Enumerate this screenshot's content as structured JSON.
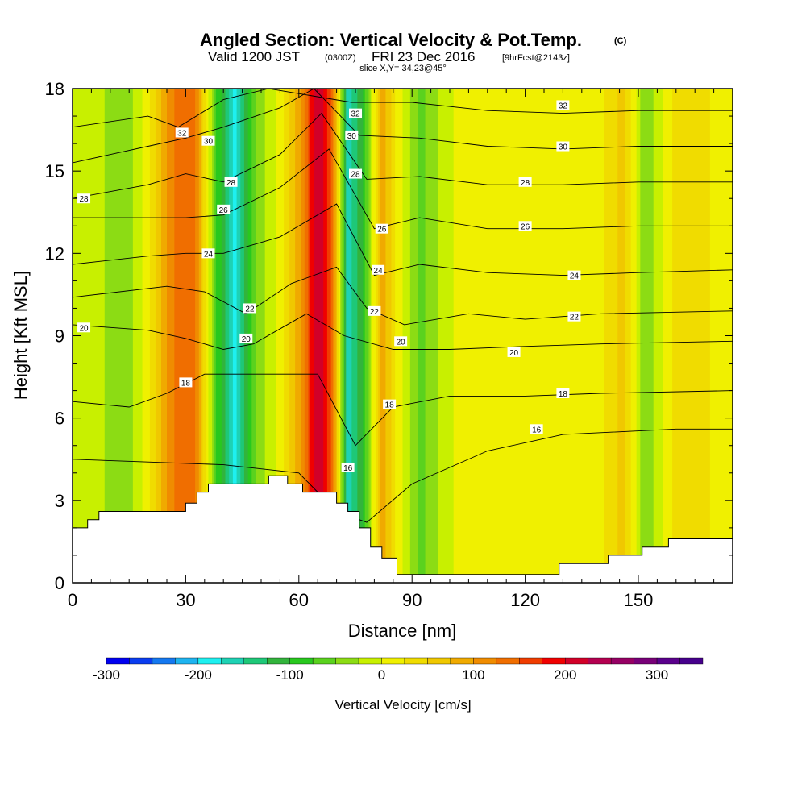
{
  "chart_data": {
    "type": "heatmap",
    "title": "Angled Section: Vertical Velocity & Pot.Temp.",
    "title_mark": "(C)",
    "subtitle": {
      "valid": "Valid 1200 JST",
      "utc": "(0300Z)",
      "date": "FRI 23 Dec 2016",
      "fcst": "[9hrFcst@2143z]"
    },
    "slice_text": "slice X,Y= 34,23@45°",
    "xlabel": "Distance [nm]",
    "ylabel": "Height [Kft MSL]",
    "xlim": [
      0,
      175
    ],
    "ylim": [
      0,
      18
    ],
    "xticks": [
      0,
      30,
      60,
      90,
      120,
      150
    ],
    "yticks": [
      0,
      3,
      6,
      9,
      12,
      15,
      18
    ],
    "colorbar": {
      "label": "Vertical Velocity [cm/s]",
      "ticks": [
        -300,
        -200,
        -100,
        0,
        100,
        200,
        300
      ],
      "range": [
        -300,
        350
      ],
      "step": 25,
      "colors": [
        "#0000f0",
        "#0a3cf0",
        "#1478f0",
        "#1eb4f0",
        "#1ef0f0",
        "#1ed2b4",
        "#1ec878",
        "#32b43c",
        "#28c81e",
        "#5ad21e",
        "#8cdc14",
        "#c8f000",
        "#f0f000",
        "#f0dc00",
        "#f0c800",
        "#f0aa00",
        "#f08c00",
        "#f06e00",
        "#f03c00",
        "#f00000",
        "#d20028",
        "#b40050",
        "#960064",
        "#780078",
        "#5a008c",
        "#46008c"
      ]
    },
    "velocity_columns": [
      {
        "x": 0,
        "v": 0
      },
      {
        "x": 6,
        "v": -15
      },
      {
        "x": 14,
        "v": -45
      },
      {
        "x": 20,
        "v": 15
      },
      {
        "x": 26,
        "v": 120
      },
      {
        "x": 32,
        "v": 150
      },
      {
        "x": 38,
        "v": -70
      },
      {
        "x": 43,
        "v": -190
      },
      {
        "x": 49,
        "v": -40
      },
      {
        "x": 55,
        "v": 10
      },
      {
        "x": 61,
        "v": 110
      },
      {
        "x": 65,
        "v": 230
      },
      {
        "x": 69,
        "v": 140
      },
      {
        "x": 73,
        "v": -170
      },
      {
        "x": 77,
        "v": -100
      },
      {
        "x": 82,
        "v": 90
      },
      {
        "x": 86,
        "v": 20
      },
      {
        "x": 92,
        "v": -60
      },
      {
        "x": 98,
        "v": -20
      },
      {
        "x": 104,
        "v": 20
      },
      {
        "x": 112,
        "v": 0
      },
      {
        "x": 120,
        "v": 10
      },
      {
        "x": 130,
        "v": 15
      },
      {
        "x": 138,
        "v": 5
      },
      {
        "x": 146,
        "v": 60
      },
      {
        "x": 152,
        "v": -50
      },
      {
        "x": 158,
        "v": 20
      },
      {
        "x": 164,
        "v": 45
      },
      {
        "x": 170,
        "v": 20
      },
      {
        "x": 175,
        "v": 0
      }
    ],
    "isentropes": [
      {
        "label": "16",
        "points": [
          [
            0,
            4.5
          ],
          [
            20,
            4.4
          ],
          [
            40,
            4.3
          ],
          [
            60,
            4.0
          ],
          [
            70,
            2.6
          ],
          [
            78,
            2.2
          ],
          [
            90,
            3.6
          ],
          [
            110,
            4.8
          ],
          [
            130,
            5.4
          ],
          [
            160,
            5.6
          ],
          [
            175,
            5.6
          ]
        ]
      },
      {
        "label": "18",
        "points": [
          [
            0,
            6.6
          ],
          [
            15,
            6.4
          ],
          [
            25,
            6.9
          ],
          [
            35,
            7.6
          ],
          [
            50,
            7.6
          ],
          [
            65,
            7.6
          ],
          [
            75,
            5.0
          ],
          [
            85,
            6.4
          ],
          [
            100,
            6.8
          ],
          [
            120,
            6.8
          ],
          [
            140,
            6.9
          ],
          [
            175,
            7.0
          ]
        ]
      },
      {
        "label": "20",
        "points": [
          [
            0,
            9.4
          ],
          [
            20,
            9.2
          ],
          [
            30,
            8.9
          ],
          [
            40,
            8.5
          ],
          [
            48,
            8.7
          ],
          [
            62,
            9.8
          ],
          [
            72,
            9.0
          ],
          [
            85,
            8.5
          ],
          [
            100,
            8.5
          ],
          [
            118,
            8.6
          ],
          [
            140,
            8.7
          ],
          [
            175,
            8.8
          ]
        ]
      },
      {
        "label": "22",
        "points": [
          [
            0,
            10.4
          ],
          [
            25,
            10.8
          ],
          [
            35,
            10.6
          ],
          [
            46,
            9.8
          ],
          [
            58,
            10.9
          ],
          [
            70,
            11.5
          ],
          [
            78,
            10.0
          ],
          [
            88,
            9.4
          ],
          [
            105,
            9.8
          ],
          [
            120,
            9.6
          ],
          [
            140,
            9.8
          ],
          [
            175,
            9.9
          ]
        ]
      },
      {
        "label": "24",
        "points": [
          [
            0,
            11.6
          ],
          [
            20,
            11.9
          ],
          [
            30,
            12.0
          ],
          [
            40,
            12.0
          ],
          [
            55,
            12.6
          ],
          [
            70,
            13.8
          ],
          [
            80,
            11.2
          ],
          [
            92,
            11.6
          ],
          [
            110,
            11.3
          ],
          [
            130,
            11.2
          ],
          [
            150,
            11.3
          ],
          [
            175,
            11.4
          ]
        ]
      },
      {
        "label": "26",
        "points": [
          [
            0,
            13.3
          ],
          [
            20,
            13.3
          ],
          [
            30,
            13.3
          ],
          [
            40,
            13.4
          ],
          [
            55,
            14.4
          ],
          [
            68,
            15.8
          ],
          [
            80,
            12.9
          ],
          [
            92,
            13.3
          ],
          [
            110,
            12.9
          ],
          [
            130,
            12.9
          ],
          [
            150,
            13.0
          ],
          [
            175,
            13.0
          ]
        ]
      },
      {
        "label": "28",
        "points": [
          [
            0,
            14.0
          ],
          [
            20,
            14.5
          ],
          [
            30,
            14.9
          ],
          [
            40,
            14.6
          ],
          [
            55,
            15.6
          ],
          [
            66,
            17.1
          ],
          [
            78,
            14.7
          ],
          [
            92,
            14.8
          ],
          [
            110,
            14.5
          ],
          [
            130,
            14.5
          ],
          [
            150,
            14.6
          ],
          [
            175,
            14.6
          ]
        ]
      },
      {
        "label": "30",
        "points": [
          [
            0,
            15.3
          ],
          [
            20,
            15.9
          ],
          [
            30,
            16.2
          ],
          [
            40,
            16.6
          ],
          [
            55,
            17.3
          ],
          [
            64,
            18.0
          ],
          [
            76,
            16.3
          ],
          [
            92,
            16.2
          ],
          [
            110,
            15.9
          ],
          [
            130,
            15.8
          ],
          [
            150,
            15.9
          ],
          [
            175,
            15.9
          ]
        ]
      },
      {
        "label": "32",
        "points": [
          [
            0,
            16.6
          ],
          [
            20,
            17.0
          ],
          [
            28,
            16.6
          ],
          [
            40,
            17.6
          ],
          [
            52,
            18.0
          ],
          [
            74,
            17.5
          ],
          [
            90,
            17.5
          ],
          [
            110,
            17.2
          ],
          [
            130,
            17.1
          ],
          [
            150,
            17.2
          ],
          [
            175,
            17.2
          ]
        ]
      }
    ],
    "contour_labels": [
      {
        "text": "32",
        "x": 29,
        "y": 16.4
      },
      {
        "text": "30",
        "x": 36,
        "y": 16.1
      },
      {
        "text": "28",
        "x": 42,
        "y": 14.6
      },
      {
        "text": "26",
        "x": 40,
        "y": 13.6
      },
      {
        "text": "24",
        "x": 36,
        "y": 12.0
      },
      {
        "text": "22",
        "x": 47,
        "y": 10.0
      },
      {
        "text": "20",
        "x": 46,
        "y": 8.9
      },
      {
        "text": "18",
        "x": 30,
        "y": 7.3
      },
      {
        "text": "32",
        "x": 75,
        "y": 17.1
      },
      {
        "text": "30",
        "x": 74,
        "y": 16.3
      },
      {
        "text": "28",
        "x": 75,
        "y": 14.9
      },
      {
        "text": "26",
        "x": 82,
        "y": 12.9
      },
      {
        "text": "24",
        "x": 81,
        "y": 11.4
      },
      {
        "text": "22",
        "x": 80,
        "y": 9.9
      },
      {
        "text": "20",
        "x": 87,
        "y": 8.8
      },
      {
        "text": "18",
        "x": 84,
        "y": 6.5
      },
      {
        "text": "16",
        "x": 73,
        "y": 4.2
      },
      {
        "text": "32",
        "x": 130,
        "y": 17.4
      },
      {
        "text": "30",
        "x": 130,
        "y": 15.9
      },
      {
        "text": "28",
        "x": 120,
        "y": 14.6
      },
      {
        "text": "26",
        "x": 120,
        "y": 13.0
      },
      {
        "text": "24",
        "x": 133,
        "y": 11.2
      },
      {
        "text": "22",
        "x": 133,
        "y": 9.7
      },
      {
        "text": "20",
        "x": 117,
        "y": 8.4
      },
      {
        "text": "18",
        "x": 130,
        "y": 6.9
      },
      {
        "text": "16",
        "x": 123,
        "y": 5.6
      },
      {
        "text": "28",
        "x": 3,
        "y": 14.0
      },
      {
        "text": "20",
        "x": 3,
        "y": 9.3
      }
    ],
    "terrain": [
      [
        0,
        2.0
      ],
      [
        4,
        2.0
      ],
      [
        4,
        2.3
      ],
      [
        7,
        2.3
      ],
      [
        7,
        2.6
      ],
      [
        30,
        2.6
      ],
      [
        30,
        2.9
      ],
      [
        33,
        2.9
      ],
      [
        33,
        3.3
      ],
      [
        36,
        3.3
      ],
      [
        36,
        3.6
      ],
      [
        52,
        3.6
      ],
      [
        52,
        3.9
      ],
      [
        57,
        3.9
      ],
      [
        57,
        3.6
      ],
      [
        61,
        3.6
      ],
      [
        61,
        3.3
      ],
      [
        70,
        3.3
      ],
      [
        70,
        2.9
      ],
      [
        73,
        2.9
      ],
      [
        73,
        2.6
      ],
      [
        76,
        2.6
      ],
      [
        76,
        2.0
      ],
      [
        79,
        2.0
      ],
      [
        79,
        1.3
      ],
      [
        82,
        1.3
      ],
      [
        82,
        0.9
      ],
      [
        86,
        0.9
      ],
      [
        86,
        0.3
      ],
      [
        129,
        0.3
      ],
      [
        129,
        0.7
      ],
      [
        142,
        0.7
      ],
      [
        142,
        1.0
      ],
      [
        151,
        1.0
      ],
      [
        151,
        1.3
      ],
      [
        158,
        1.3
      ],
      [
        158,
        1.6
      ],
      [
        175,
        1.6
      ]
    ]
  }
}
